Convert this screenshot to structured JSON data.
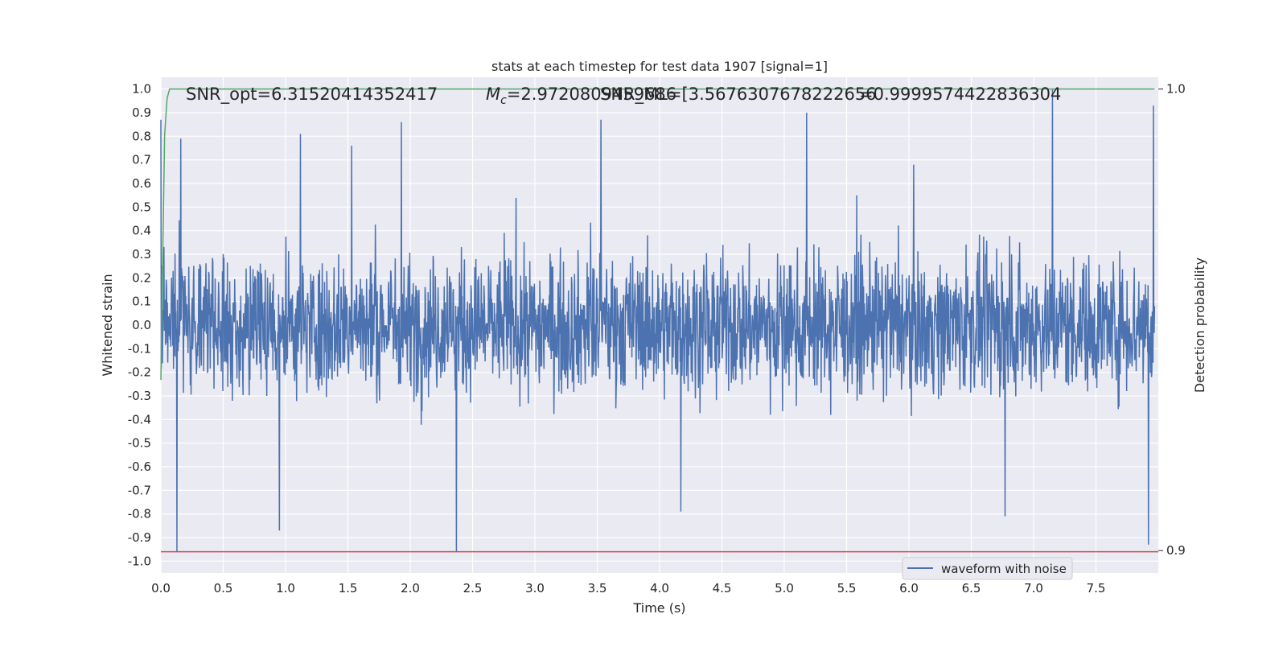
{
  "chart_data": {
    "type": "line",
    "title": "stats at each timestep for test data 1907 [signal=1]",
    "xlabel": "Time (s)",
    "ylabel": "Whitened strain",
    "y2label": "Detection probability",
    "xlim": [
      0.0,
      8.0
    ],
    "ylim": [
      -1.05,
      1.05
    ],
    "y2lim": [
      0.9,
      1.0
    ],
    "x_ticks": [
      "0.0",
      "0.5",
      "1.0",
      "1.5",
      "2.0",
      "2.5",
      "3.0",
      "3.5",
      "4.0",
      "4.5",
      "5.0",
      "5.5",
      "6.0",
      "6.5",
      "7.0",
      "7.5"
    ],
    "x_tick_values": [
      0.0,
      0.5,
      1.0,
      1.5,
      2.0,
      2.5,
      3.0,
      3.5,
      4.0,
      4.5,
      5.0,
      5.5,
      6.0,
      6.5,
      7.0,
      7.5
    ],
    "y_ticks": [
      "1.0",
      "0.9",
      "0.8",
      "0.7",
      "0.6",
      "0.5",
      "0.4",
      "0.3",
      "0.2",
      "0.1",
      "0.0",
      "-0.1",
      "-0.2",
      "-0.3",
      "-0.4",
      "-0.5",
      "-0.6",
      "-0.7",
      "-0.8",
      "-0.9",
      "-1.0"
    ],
    "y_tick_values": [
      1.0,
      0.9,
      0.8,
      0.7,
      0.6,
      0.5,
      0.4,
      0.3,
      0.2,
      0.1,
      0.0,
      -0.1,
      -0.2,
      -0.3,
      -0.4,
      -0.5,
      -0.6,
      -0.7,
      -0.8,
      -0.9,
      -1.0
    ],
    "y2_ticks": [
      "1.0",
      "0.9"
    ],
    "y2_tick_values": [
      1.0,
      0.9
    ],
    "annotations": [
      "SNR_opt=6.31520414352417",
      "=2.9720809459686",
      "SNR_ML=[3.5676307678222656",
      "=0.9999574422836304"
    ],
    "annotation_mc_symbol": "M",
    "annotation_mc_sub": "c",
    "legend": {
      "placement": "lower-right",
      "entries": [
        "waveform with noise"
      ]
    },
    "grid": true,
    "colors": {
      "waveform": "#4c72b0",
      "probability": "#55a868",
      "threshold": "#c44e52",
      "axes_bg": "#eaeaf2",
      "grid": "#ffffff"
    },
    "series": [
      {
        "name": "waveform with noise",
        "axis": "left",
        "noise_description_values": {
          "typical_amplitude": 0.4,
          "max": 1.0,
          "min": -0.96
        },
        "peaks": [
          {
            "x": 0.0,
            "y": 0.87
          },
          {
            "x": 0.13,
            "y": -0.96
          },
          {
            "x": 0.16,
            "y": 0.79
          },
          {
            "x": 0.95,
            "y": -0.87
          },
          {
            "x": 1.12,
            "y": 0.81
          },
          {
            "x": 1.53,
            "y": 0.76
          },
          {
            "x": 1.93,
            "y": 0.86
          },
          {
            "x": 2.37,
            "y": -0.96
          },
          {
            "x": 3.53,
            "y": 0.87
          },
          {
            "x": 4.17,
            "y": -0.79
          },
          {
            "x": 5.18,
            "y": 0.9
          },
          {
            "x": 6.77,
            "y": -0.81
          },
          {
            "x": 7.15,
            "y": 1.0
          },
          {
            "x": 7.96,
            "y": 0.93
          },
          {
            "x": 7.92,
            "y": -0.93
          }
        ]
      },
      {
        "name": "detection probability",
        "axis": "right",
        "x": [
          0.0,
          0.01,
          0.03,
          0.05,
          0.07,
          7.97
        ],
        "y": [
          0.937,
          0.955,
          0.99,
          0.998,
          1.0,
          1.0
        ]
      },
      {
        "name": "threshold",
        "axis": "left",
        "x": [
          0.0,
          8.0
        ],
        "y": [
          -0.96,
          -0.96
        ]
      }
    ]
  }
}
